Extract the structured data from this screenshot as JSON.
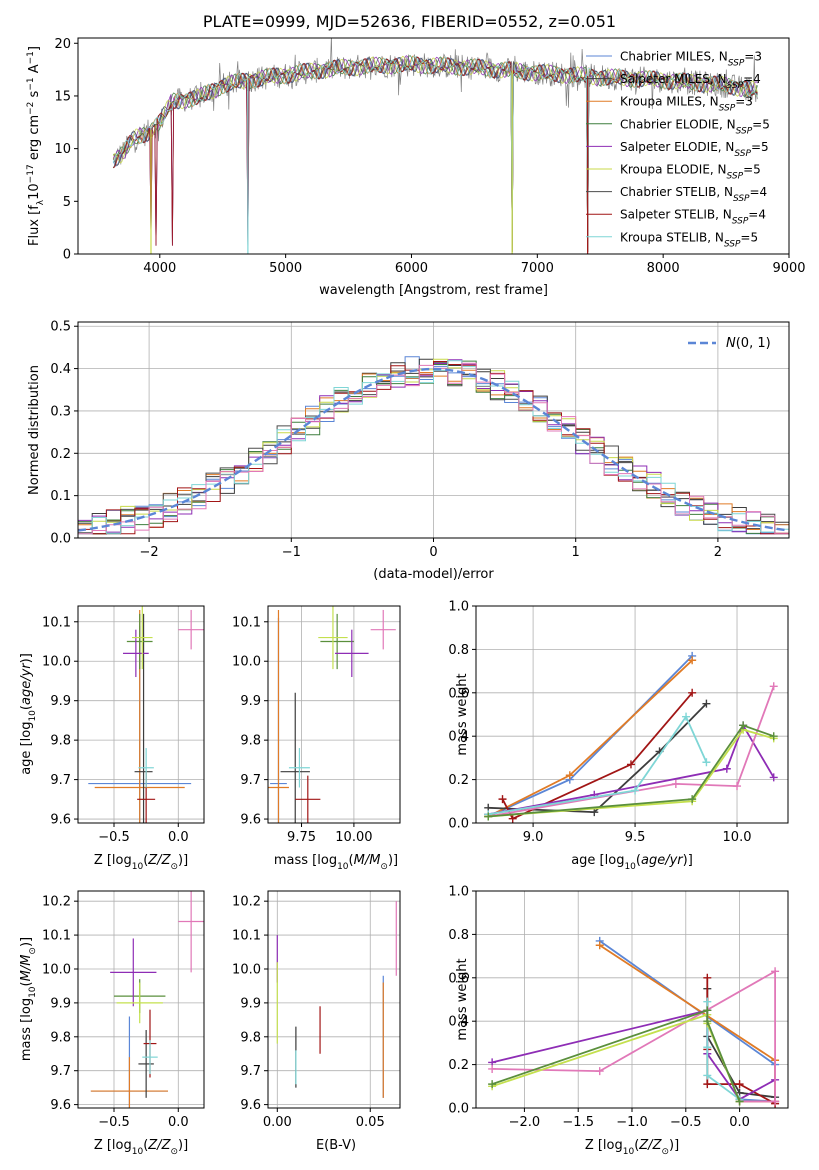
{
  "title": "PLATE=0999, MJD=52636, FIBERID=0552, z=0.051",
  "colors": {
    "Chabrier MILES": "#5b86d6",
    "Salpeter MILES": "#3d3d3d",
    "Kroupa MILES": "#e07b26",
    "Chabrier ELODIE": "#3f7f3f",
    "Salpeter ELODIE": "#8e2db5",
    "Kroupa ELODIE": "#c8d94a",
    "Chabrier STELIB": "#4b4b4b",
    "Salpeter STELIB": "#a11515",
    "Kroupa STELIB": "#7fd6d6",
    "normal": "#5b86d6",
    "pink": "#e178b8",
    "lime": "#c4e04e",
    "green": "#5a8f3c"
  },
  "chart_data": [
    {
      "id": "spectrum",
      "type": "line",
      "xlabel": "wavelength [Angstrom, rest frame]",
      "ylabel": "Flux [f_λ10^-17 erg cm^-2 s^-1 A^-1]",
      "xlim": [
        3350,
        9000
      ],
      "ylim": [
        0,
        20.5
      ],
      "xticks": [
        4000,
        5000,
        6000,
        7000,
        8000,
        9000
      ],
      "yticks": [
        0,
        5,
        10,
        15,
        20
      ],
      "legend_position": "top-right",
      "series": [
        {
          "name": "Chabrier MILES",
          "n_ssp": "3"
        },
        {
          "name": "Salpeter MILES",
          "n_ssp": "4"
        },
        {
          "name": "Kroupa MILES",
          "n_ssp": "3"
        },
        {
          "name": "Chabrier ELODIE",
          "n_ssp": "5"
        },
        {
          "name": "Salpeter ELODIE",
          "n_ssp": "5"
        },
        {
          "name": "Kroupa ELODIE",
          "n_ssp": "5"
        },
        {
          "name": "Chabrier STELIB",
          "n_ssp": "4"
        },
        {
          "name": "Salpeter STELIB",
          "n_ssp": "4"
        },
        {
          "name": "Kroupa STELIB",
          "n_ssp": "5"
        }
      ],
      "continuum": [
        [
          3630,
          9
        ],
        [
          3700,
          9.5
        ],
        [
          3800,
          11
        ],
        [
          3900,
          11.5
        ],
        [
          4000,
          12.5
        ],
        [
          4100,
          14.5
        ],
        [
          4300,
          14.8
        ],
        [
          4500,
          16
        ],
        [
          4700,
          16.5
        ],
        [
          5000,
          17
        ],
        [
          5300,
          17.5
        ],
        [
          5600,
          17.8
        ],
        [
          6000,
          18
        ],
        [
          6500,
          17.7
        ],
        [
          7000,
          17.2
        ],
        [
          7500,
          16.8
        ],
        [
          8000,
          16.5
        ],
        [
          8500,
          16
        ],
        [
          8750,
          15.5
        ]
      ],
      "dips": [
        [
          3930,
          1.5
        ],
        [
          3970,
          0.8
        ],
        [
          4102,
          0.8
        ],
        [
          4700,
          0.8
        ],
        [
          6800,
          0.2
        ],
        [
          7400,
          0.2
        ]
      ]
    },
    {
      "id": "residuals",
      "type": "line",
      "xlabel": "(data-model)/error",
      "ylabel": "Normed distribution",
      "xlim": [
        -2.5,
        2.5
      ],
      "ylim": [
        0,
        0.51
      ],
      "xticks": [
        -2,
        -1,
        0,
        1,
        2
      ],
      "yticks": [
        0.0,
        0.1,
        0.2,
        0.3,
        0.4,
        0.5
      ],
      "grid": true,
      "legend_position": "top-right",
      "reference_curve": "N(0,1)"
    },
    {
      "id": "age-vs-Z",
      "type": "scatter",
      "xlabel": "Z [log10(Z/Z⊙)]",
      "ylabel": "age  [log10(age/yr)]",
      "xlim": [
        -0.78,
        0.2
      ],
      "ylim": [
        9.59,
        10.14
      ],
      "xticks": [
        -0.5,
        0.0
      ],
      "yticks": [
        9.6,
        9.7,
        9.8,
        9.9,
        10.0,
        10.1
      ],
      "grid": true,
      "points": [
        {
          "color": "#5b86d6",
          "x": -0.3,
          "xerr": 0.4,
          "y": 9.69,
          "yerr": 0.4
        },
        {
          "color": "#e07b26",
          "x": -0.3,
          "xerr": 0.35,
          "y": 9.68,
          "yerr": 0.45
        },
        {
          "color": "#3d3d3d",
          "x": -0.27,
          "xerr": 0.07,
          "y": 9.72,
          "yerr": 0.4
        },
        {
          "color": "#5a8f3c",
          "x": -0.3,
          "xerr": 0.1,
          "y": 10.05,
          "yerr": 0.07
        },
        {
          "color": "#8e2db5",
          "x": -0.33,
          "xerr": 0.1,
          "y": 10.02,
          "yerr": 0.06
        },
        {
          "color": "#c4e04e",
          "x": -0.28,
          "xerr": 0.08,
          "y": 10.06,
          "yerr": 0.08
        },
        {
          "color": "#a11515",
          "x": -0.25,
          "xerr": 0.07,
          "y": 9.65,
          "yerr": 0.07
        },
        {
          "color": "#7fd6d6",
          "x": -0.25,
          "xerr": 0.06,
          "y": 9.73,
          "yerr": 0.05
        },
        {
          "color": "#e178b8",
          "x": 0.1,
          "xerr": 0.1,
          "y": 10.08,
          "yerr": 0.05
        }
      ]
    },
    {
      "id": "age-vs-mass",
      "type": "scatter",
      "xlabel": "mass [log10(M/M⊙)]",
      "ylabel": "",
      "xlim": [
        9.59,
        10.22
      ],
      "ylim": [
        9.59,
        10.14
      ],
      "xticks": [
        9.75,
        10.0
      ],
      "yticks": [
        9.6,
        9.7,
        9.8,
        9.9,
        10.0,
        10.1
      ],
      "grid": true,
      "points": [
        {
          "color": "#5b86d6",
          "x": 9.64,
          "xerr": 0.04,
          "y": 9.69,
          "yerr": 0.42
        },
        {
          "color": "#e07b26",
          "x": 9.64,
          "xerr": 0.05,
          "y": 9.68,
          "yerr": 0.45
        },
        {
          "color": "#3d3d3d",
          "x": 9.72,
          "xerr": 0.07,
          "y": 9.72,
          "yerr": 0.2
        },
        {
          "color": "#5a8f3c",
          "x": 9.92,
          "xerr": 0.08,
          "y": 10.05,
          "yerr": 0.07
        },
        {
          "color": "#8e2db5",
          "x": 9.99,
          "xerr": 0.08,
          "y": 10.02,
          "yerr": 0.06
        },
        {
          "color": "#c4e04e",
          "x": 9.9,
          "xerr": 0.07,
          "y": 10.06,
          "yerr": 0.08
        },
        {
          "color": "#a11515",
          "x": 9.78,
          "xerr": 0.06,
          "y": 9.65,
          "yerr": 0.06
        },
        {
          "color": "#7fd6d6",
          "x": 9.74,
          "xerr": 0.05,
          "y": 9.73,
          "yerr": 0.05
        },
        {
          "color": "#e178b8",
          "x": 10.14,
          "xerr": 0.06,
          "y": 10.08,
          "yerr": 0.05
        }
      ]
    },
    {
      "id": "massweight-vs-age",
      "type": "line",
      "xlabel": "age  [log10(age/yr)]",
      "ylabel": "mass weight",
      "xlim": [
        8.72,
        10.25
      ],
      "ylim": [
        0,
        1.0
      ],
      "xticks": [
        9.0,
        9.5,
        10.0
      ],
      "yticks": [
        0.0,
        0.2,
        0.4,
        0.6,
        0.8,
        1.0
      ],
      "grid": true,
      "series": [
        {
          "color": "#5b86d6",
          "points": [
            [
              8.78,
              0.03
            ],
            [
              9.18,
              0.2
            ],
            [
              9.78,
              0.77
            ]
          ]
        },
        {
          "color": "#e07b26",
          "points": [
            [
              8.78,
              0.03
            ],
            [
              9.18,
              0.22
            ],
            [
              9.78,
              0.75
            ]
          ]
        },
        {
          "color": "#3d3d3d",
          "points": [
            [
              8.78,
              0.07
            ],
            [
              9.3,
              0.05
            ],
            [
              9.62,
              0.33
            ],
            [
              9.85,
              0.55
            ]
          ]
        },
        {
          "color": "#a11515",
          "points": [
            [
              8.85,
              0.11
            ],
            [
              8.9,
              0.02
            ],
            [
              9.48,
              0.27
            ],
            [
              9.78,
              0.6
            ]
          ]
        },
        {
          "color": "#8e2db5",
          "points": [
            [
              8.78,
              0.04
            ],
            [
              9.3,
              0.13
            ],
            [
              9.95,
              0.25
            ],
            [
              10.03,
              0.45
            ],
            [
              10.18,
              0.21
            ]
          ]
        },
        {
          "color": "#e178b8",
          "points": [
            [
              8.78,
              0.03
            ],
            [
              9.7,
              0.18
            ],
            [
              10.0,
              0.17
            ],
            [
              10.18,
              0.63
            ]
          ]
        },
        {
          "color": "#7fd6d6",
          "points": [
            [
              8.78,
              0.04
            ],
            [
              9.5,
              0.15
            ],
            [
              9.75,
              0.49
            ],
            [
              9.85,
              0.28
            ]
          ]
        },
        {
          "color": "#c4e04e",
          "points": [
            [
              8.78,
              0.03
            ],
            [
              9.78,
              0.1
            ],
            [
              10.03,
              0.43
            ],
            [
              10.18,
              0.39
            ]
          ]
        },
        {
          "color": "#5a8f3c",
          "points": [
            [
              8.78,
              0.03
            ],
            [
              9.78,
              0.11
            ],
            [
              10.03,
              0.45
            ],
            [
              10.18,
              0.4
            ]
          ]
        }
      ]
    },
    {
      "id": "mass-vs-Z",
      "type": "scatter",
      "xlabel": "Z [log10(Z/Z⊙)]",
      "ylabel": "mass [log10(M/M⊙)]",
      "xlim": [
        -0.78,
        0.2
      ],
      "ylim": [
        9.59,
        10.23
      ],
      "xticks": [
        -0.5,
        0.0
      ],
      "yticks": [
        9.6,
        9.7,
        9.8,
        9.9,
        10.0,
        10.1,
        10.2
      ],
      "grid": true,
      "points": [
        {
          "color": "#5b86d6",
          "x": -0.38,
          "xerr": 0.3,
          "y": 9.64,
          "yerr": 0.22
        },
        {
          "color": "#e07b26",
          "x": -0.38,
          "xerr": 0.3,
          "y": 9.64,
          "yerr": 0.1
        },
        {
          "color": "#3d3d3d",
          "x": -0.25,
          "xerr": 0.06,
          "y": 9.72,
          "yerr": 0.1
        },
        {
          "color": "#5a8f3c",
          "x": -0.3,
          "xerr": 0.2,
          "y": 9.92,
          "yerr": 0.05
        },
        {
          "color": "#8e2db5",
          "x": -0.35,
          "xerr": 0.18,
          "y": 9.99,
          "yerr": 0.1
        },
        {
          "color": "#c4e04e",
          "x": -0.3,
          "xerr": 0.18,
          "y": 9.9,
          "yerr": 0.06
        },
        {
          "color": "#a11515",
          "x": -0.22,
          "xerr": 0.05,
          "y": 9.78,
          "yerr": 0.1
        },
        {
          "color": "#7fd6d6",
          "x": -0.22,
          "xerr": 0.06,
          "y": 9.74,
          "yerr": 0.05
        },
        {
          "color": "#e178b8",
          "x": 0.1,
          "xerr": 0.1,
          "y": 10.14,
          "yerr": 0.15
        }
      ]
    },
    {
      "id": "mass-vs-EBV",
      "type": "scatter",
      "xlabel": "E(B-V)",
      "ylabel": "",
      "xlim": [
        -0.005,
        0.066
      ],
      "ylim": [
        9.59,
        10.23
      ],
      "xticks": [
        0.0,
        0.05
      ],
      "yticks": [
        9.6,
        9.7,
        9.8,
        9.9,
        10.0,
        10.1,
        10.2
      ],
      "grid": true,
      "points": [
        {
          "color": "#5b86d6",
          "x": 0.057,
          "y": 9.8,
          "yerr": 0.18
        },
        {
          "color": "#e07b26",
          "x": 0.057,
          "y": 9.79,
          "yerr": 0.17
        },
        {
          "color": "#3d3d3d",
          "x": 0.01,
          "y": 9.74,
          "yerr": 0.09
        },
        {
          "color": "#8e2db5",
          "x": 0.0,
          "y": 10.03,
          "yerr": 0.07
        },
        {
          "color": "#c4e04e",
          "x": 0.0,
          "y": 9.9,
          "yerr": 0.12
        },
        {
          "color": "#a11515",
          "x": 0.023,
          "y": 9.82,
          "yerr": 0.07
        },
        {
          "color": "#7fd6d6",
          "x": 0.01,
          "y": 9.71,
          "yerr": 0.05
        },
        {
          "color": "#e178b8",
          "x": 0.064,
          "y": 10.09,
          "yerr": 0.11
        }
      ]
    },
    {
      "id": "massweight-vs-Z",
      "type": "line",
      "xlabel": "Z [log10(Z/Z⊙)]",
      "ylabel": "mass weight",
      "xlim": [
        -2.45,
        0.45
      ],
      "ylim": [
        0,
        1.0
      ],
      "xticks": [
        -2.0,
        -1.5,
        -1.0,
        -0.5,
        0.0
      ],
      "yticks": [
        0.0,
        0.2,
        0.4,
        0.6,
        0.8,
        1.0
      ],
      "grid": true,
      "series": [
        {
          "color": "#5b86d6",
          "points": [
            [
              -1.3,
              0.77
            ],
            [
              0.33,
              0.2
            ],
            [
              0.33,
              0.03
            ],
            [
              0.0,
              0.04
            ]
          ]
        },
        {
          "color": "#e07b26",
          "points": [
            [
              -1.3,
              0.75
            ],
            [
              0.33,
              0.22
            ],
            [
              0.33,
              0.03
            ],
            [
              0.0,
              0.03
            ]
          ]
        },
        {
          "color": "#3d3d3d",
          "points": [
            [
              -0.3,
              0.55
            ],
            [
              -0.3,
              0.33
            ],
            [
              0.0,
              0.07
            ],
            [
              0.33,
              0.05
            ]
          ]
        },
        {
          "color": "#a11515",
          "points": [
            [
              -0.3,
              0.6
            ],
            [
              -0.3,
              0.27
            ],
            [
              -0.3,
              0.11
            ],
            [
              0.0,
              0.11
            ],
            [
              0.33,
              0.02
            ]
          ]
        },
        {
          "color": "#8e2db5",
          "points": [
            [
              -2.3,
              0.21
            ],
            [
              -0.3,
              0.45
            ],
            [
              -0.3,
              0.25
            ],
            [
              0.0,
              0.04
            ],
            [
              0.33,
              0.13
            ]
          ]
        },
        {
          "color": "#e178b8",
          "points": [
            [
              -2.3,
              0.18
            ],
            [
              -1.3,
              0.17
            ],
            [
              0.33,
              0.63
            ],
            [
              0.33,
              0.03
            ],
            [
              0.0,
              0.03
            ]
          ]
        },
        {
          "color": "#7fd6d6",
          "points": [
            [
              -0.3,
              0.49
            ],
            [
              -0.3,
              0.28
            ],
            [
              -0.3,
              0.15
            ],
            [
              0.0,
              0.04
            ]
          ]
        },
        {
          "color": "#c4e04e",
          "points": [
            [
              -2.3,
              0.1
            ],
            [
              -0.3,
              0.43
            ],
            [
              -0.3,
              0.39
            ],
            [
              0.0,
              0.03
            ]
          ]
        },
        {
          "color": "#5a8f3c",
          "points": [
            [
              -2.3,
              0.11
            ],
            [
              -0.3,
              0.45
            ],
            [
              -0.3,
              0.4
            ],
            [
              0.0,
              0.03
            ]
          ]
        }
      ]
    }
  ]
}
